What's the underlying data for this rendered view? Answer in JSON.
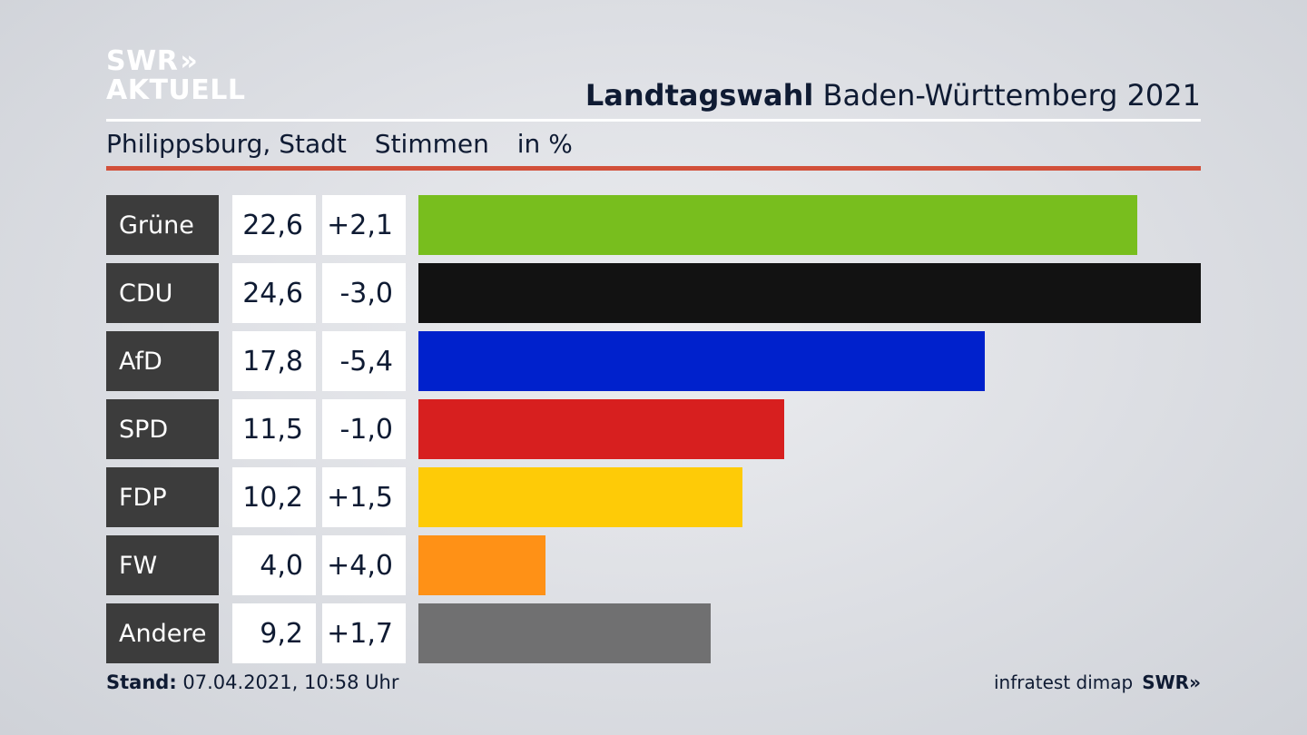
{
  "logo": {
    "line1": "SWR",
    "arrows": "»",
    "line2": "AKTUELL"
  },
  "header": {
    "title_bold": "Landtagswahl",
    "title_rest": "Baden-Württemberg 2021",
    "location": "Philippsburg, Stadt",
    "measure": "Stimmen",
    "unit": "in %"
  },
  "chart_data": {
    "type": "bar",
    "orientation": "horizontal",
    "categories": [
      "Grüne",
      "CDU",
      "AfD",
      "SPD",
      "FDP",
      "FW",
      "Andere"
    ],
    "values": [
      22.6,
      24.6,
      17.8,
      11.5,
      10.2,
      4.0,
      9.2
    ],
    "value_labels": [
      "22,6",
      "24,6",
      "17,8",
      "11,5",
      "10,2",
      "4,0",
      "9,2"
    ],
    "change_labels": [
      "+2,1",
      "-3,0",
      "-5,4",
      "-1,0",
      "+1,5",
      "+4,0",
      "+1,7"
    ],
    "colors": [
      "#78be1e",
      "#121212",
      "#0021cc",
      "#d71f1f",
      "#fecb07",
      "#ff9116",
      "#707071"
    ],
    "xlim": [
      0,
      24.6
    ]
  },
  "footer": {
    "stand_label": "Stand:",
    "stand_value": "07.04.2021, 10:58 Uhr",
    "source": "infratest dimap",
    "brand": "SWR»"
  }
}
